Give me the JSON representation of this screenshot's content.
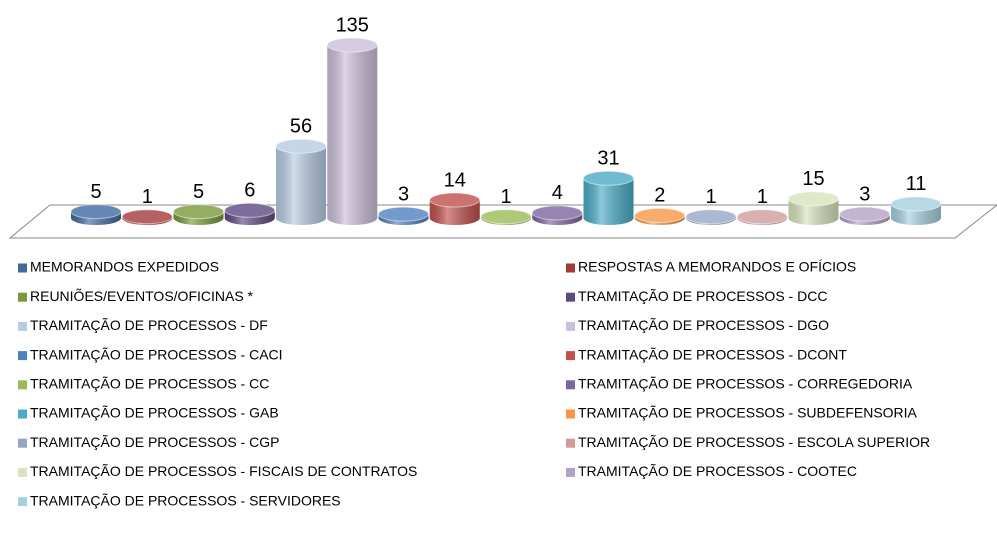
{
  "chart_data": {
    "type": "bar",
    "series": [
      {
        "name": "MEMORANDOS EXPEDIDOS",
        "color": "#3f6aa0",
        "values": [
          5
        ]
      },
      {
        "name": "RESPOSTAS A MEMORANDOS E OFÍCIOS",
        "color": "#a33a3a",
        "values": [
          1
        ]
      },
      {
        "name": "REUNIÕES/EVENTOS/OFICINAS *",
        "color": "#7a9a3a",
        "values": [
          5
        ]
      },
      {
        "name": "TRAMITAÇÃO DE PROCESSOS - DCC",
        "color": "#5e4a82",
        "values": [
          6
        ]
      },
      {
        "name": "TRAMITAÇÃO DE PROCESSOS - DF",
        "color": "#b8cce4",
        "values": [
          56
        ]
      },
      {
        "name": "TRAMITAÇÃO DE PROCESSOS - DGO",
        "color": "#ccc0da",
        "values": [
          135
        ]
      },
      {
        "name": "TRAMITAÇÃO DE PROCESSOS - CACI",
        "color": "#4f81bd",
        "values": [
          3
        ]
      },
      {
        "name": "TRAMITAÇÃO DE PROCESSOS - DCONT",
        "color": "#c0504d",
        "values": [
          14
        ]
      },
      {
        "name": "TRAMITAÇÃO DE PROCESSOS - CC",
        "color": "#9bbb59",
        "values": [
          1
        ]
      },
      {
        "name": "TRAMITAÇÃO DE PROCESSOS - CORREGEDORIA",
        "color": "#8064a2",
        "values": [
          4
        ]
      },
      {
        "name": "TRAMITAÇÃO DE PROCESSOS - GAB",
        "color": "#4bacc6",
        "values": [
          31
        ]
      },
      {
        "name": "TRAMITAÇÃO DE PROCESSOS - SUBDEFENSORIA",
        "color": "#f79646",
        "values": [
          2
        ]
      },
      {
        "name": "TRAMITAÇÃO DE PROCESSOS - CGP",
        "color": "#95a7c9",
        "values": [
          1
        ]
      },
      {
        "name": "TRAMITAÇÃO DE PROCESSOS - ESCOLA SUPERIOR",
        "color": "#d19b9b",
        "values": [
          1
        ]
      },
      {
        "name": "TRAMITAÇÃO DE PROCESSOS - FISCAIS DE CONTRATOS",
        "color": "#d7e4bd",
        "values": [
          15
        ]
      },
      {
        "name": "TRAMITAÇÃO DE PROCESSOS - COOTEC",
        "color": "#b3a2c7",
        "values": [
          3
        ]
      },
      {
        "name": "TRAMITAÇÃO DE PROCESSOS - SERVIDORES",
        "color": "#a5d0e0",
        "values": [
          11
        ]
      }
    ]
  }
}
